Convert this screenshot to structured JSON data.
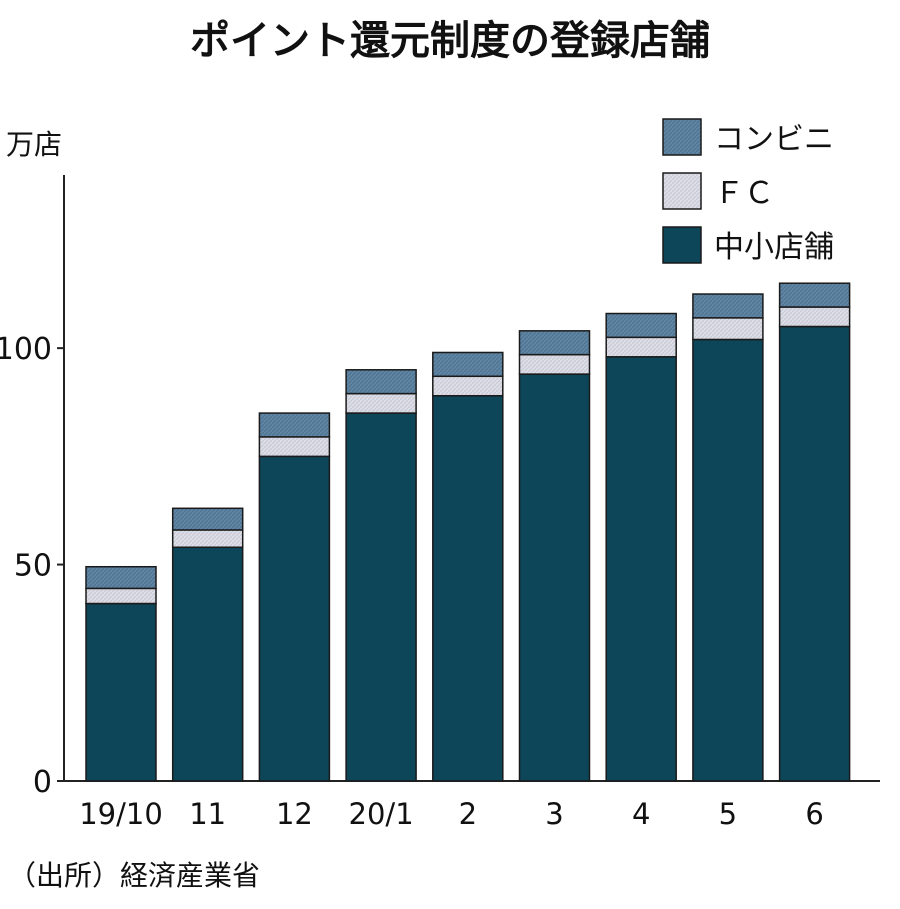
{
  "chart_data": {
    "type": "bar",
    "stacked": true,
    "title": "ポイント還元制度の登録店舗",
    "unit": "万店",
    "source": "（出所）経済産業省",
    "categories": [
      "19/10",
      "11",
      "12",
      "20/1",
      "2",
      "3",
      "4",
      "5",
      "6"
    ],
    "yticks": [
      "0",
      "50",
      "100"
    ],
    "ylim": [
      0,
      140
    ],
    "grid": false,
    "legend_position": "top-right",
    "series": [
      {
        "name": "中小店舗",
        "color": "#0d4559",
        "values": [
          41,
          54,
          75,
          85,
          89,
          94,
          98,
          102,
          105
        ]
      },
      {
        "name": "ＦＣ",
        "color": "#dcdde6",
        "values": [
          3.5,
          4,
          4.5,
          4.5,
          4.5,
          4.5,
          4.5,
          5,
          4.5
        ]
      },
      {
        "name": "コンビニ",
        "color": "#5f85a3",
        "values": [
          5,
          5,
          5.5,
          5.5,
          5.5,
          5.5,
          5.5,
          5.5,
          5.5
        ]
      }
    ],
    "legend_order": [
      2,
      1,
      0
    ]
  }
}
